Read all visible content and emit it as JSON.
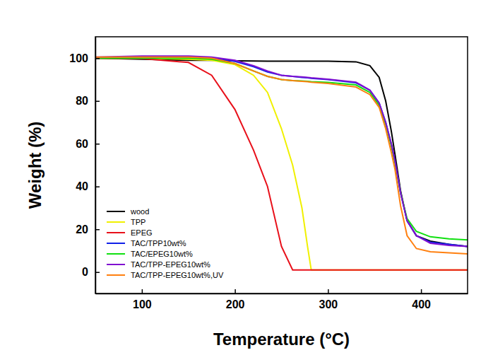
{
  "chart_data": {
    "type": "line",
    "x_label": "Temperature (°C)",
    "y_label": "Weight (%)",
    "x": [
      50,
      100,
      150,
      175,
      200,
      220,
      235,
      250,
      262,
      272,
      278,
      282,
      300,
      330,
      345,
      355,
      362,
      368,
      372,
      378,
      385,
      395,
      410,
      430,
      450
    ],
    "series": [
      {
        "name": "wood",
        "color": "#000000",
        "values": [
          100,
          99.5,
          99,
          99,
          98.8,
          98.7,
          98.6,
          98.6,
          98.6,
          98.6,
          98.6,
          98.6,
          98.6,
          98.3,
          96.5,
          91,
          80,
          66,
          55,
          38,
          24,
          17,
          14.5,
          13,
          12
        ]
      },
      {
        "name": "TPP",
        "color": "#f0f000",
        "values": [
          100,
          100,
          99.5,
          99,
          97,
          92,
          84,
          67,
          50,
          30,
          12,
          1,
          1,
          1,
          1,
          1,
          1,
          1,
          1,
          1,
          1,
          1,
          1,
          1,
          1
        ]
      },
      {
        "name": "EPEG",
        "color": "#e8101a",
        "values": [
          100,
          99.8,
          98,
          92,
          76,
          57,
          40,
          12,
          1,
          1,
          1,
          1,
          1,
          1,
          1,
          1,
          1,
          1,
          1,
          1,
          1,
          1,
          1,
          1,
          1
        ]
      },
      {
        "name": "TAC/TPP10wt%",
        "color": "#1020e8",
        "values": [
          100,
          100.5,
          100.5,
          100,
          98.5,
          96,
          93.5,
          92,
          91.5,
          91,
          90.8,
          90.6,
          90,
          88.5,
          85,
          79,
          70,
          60,
          52,
          37,
          24,
          17,
          14,
          13,
          12
        ]
      },
      {
        "name": "TAC/EPEG10wt%",
        "color": "#10e010",
        "values": [
          100,
          100,
          100,
          99.5,
          97.5,
          94,
          91.5,
          90,
          89.5,
          89.3,
          89.2,
          89,
          88.7,
          87.5,
          84,
          78,
          69,
          59,
          51,
          37,
          25,
          19,
          16.5,
          15.5,
          15
        ]
      },
      {
        "name": "TAC/TPP-EPEG10wt%",
        "color": "#8010d0",
        "values": [
          100.5,
          101,
          101,
          100.5,
          99,
          96.5,
          94,
          92,
          91.5,
          91.2,
          91,
          90.8,
          90.2,
          88.8,
          85,
          79,
          70,
          60,
          52,
          37,
          24,
          17,
          13.5,
          12.5,
          12
        ]
      },
      {
        "name": "TAC/TPP-EPEG10wt%,UV",
        "color": "#ff8010",
        "values": [
          100.5,
          100.5,
          100.5,
          100,
          97.5,
          94,
          91.5,
          90,
          89.5,
          89.2,
          89,
          88.8,
          88.2,
          86.5,
          83,
          77,
          67,
          56,
          48,
          31,
          17,
          11,
          9.5,
          9,
          8.5
        ]
      }
    ],
    "xlim": [
      50,
      450
    ],
    "xticks": [
      100,
      200,
      300,
      400
    ],
    "ylim": [
      -10,
      110
    ],
    "yticks": [
      0,
      20,
      40,
      60,
      80,
      100
    ],
    "legend": "lower left",
    "grid": false
  }
}
